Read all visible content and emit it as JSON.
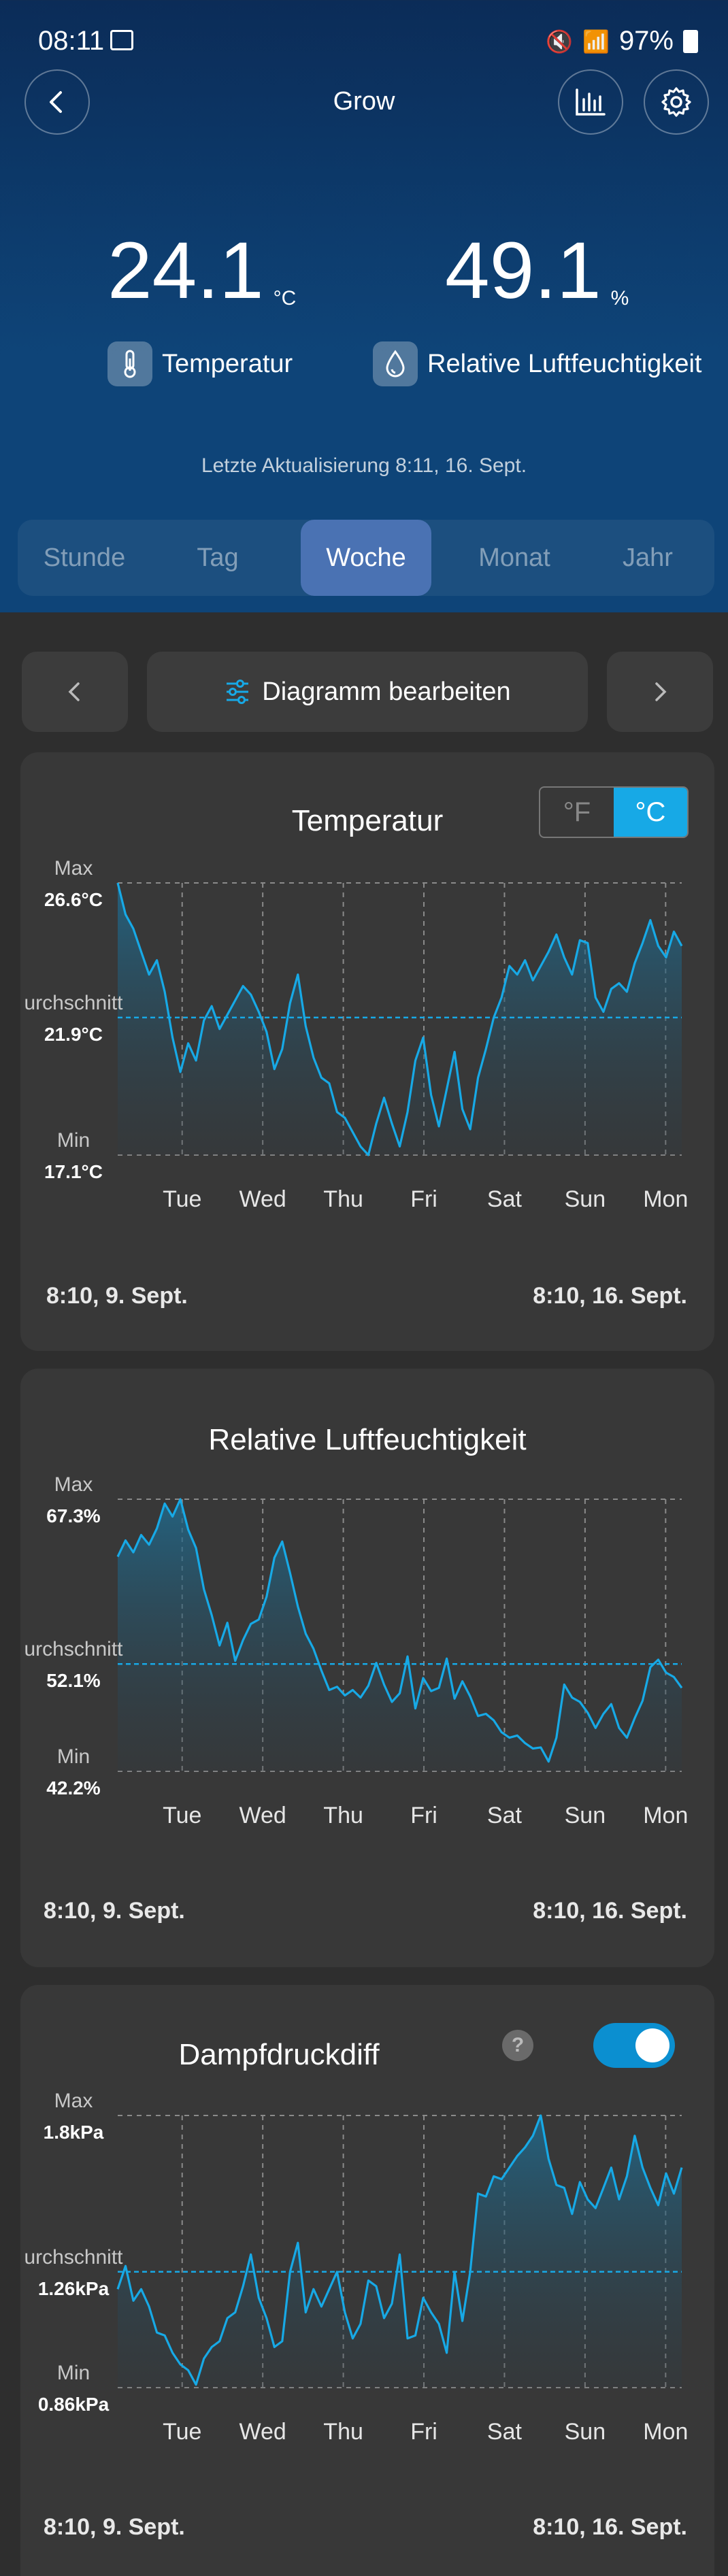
{
  "status_bar": {
    "time": "08:11",
    "battery": "97%"
  },
  "header": {
    "title": "Grow"
  },
  "readings": {
    "temperature": {
      "value": "24.1",
      "unit": "°C",
      "label": "Temperatur"
    },
    "humidity": {
      "value": "49.1",
      "unit": "%",
      "label": "Relative Luftfeuchtigkeit"
    }
  },
  "last_update": "Letzte Aktualisierung 8:11,  16. Sept.",
  "tabs": [
    "Stunde",
    "Tag",
    "Woche",
    "Monat",
    "Jahr"
  ],
  "active_tab": "Woche",
  "nav": {
    "edit_label": "Diagramm bearbeiten"
  },
  "colors": {
    "accent": "#17a9e6",
    "tab_active": "#4a72b3",
    "card": "#383838"
  },
  "chart_data": [
    {
      "type": "line",
      "title": "Temperatur",
      "units": [
        "°F",
        "°C"
      ],
      "selected_unit": "°C",
      "x_ticks": [
        "Tue",
        "Wed",
        "Thu",
        "Fri",
        "Sat",
        "Sun",
        "Mon"
      ],
      "levels": {
        "max_label": "Max",
        "max": "26.6°C",
        "avg_label": "urchschnitt",
        "avg": "21.9°C",
        "min_label": "Min",
        "min": "17.1°C"
      },
      "ylim": [
        17.1,
        26.6
      ],
      "avg_value": 21.9,
      "values": [
        26.6,
        25.5,
        25.0,
        24.2,
        23.4,
        23.9,
        22.8,
        21.2,
        20.0,
        21.0,
        20.4,
        21.8,
        22.3,
        21.5,
        22.0,
        22.5,
        23.0,
        22.7,
        22.1,
        21.4,
        20.1,
        20.8,
        22.4,
        23.4,
        21.6,
        20.5,
        19.8,
        19.6,
        18.6,
        18.4,
        17.9,
        17.4,
        17.1,
        18.2,
        19.1,
        18.2,
        17.4,
        18.6,
        20.4,
        21.2,
        19.2,
        18.1,
        19.4,
        20.7,
        18.7,
        18.0,
        19.8,
        20.8,
        21.9,
        22.6,
        23.7,
        23.4,
        23.9,
        23.2,
        23.7,
        24.2,
        24.8,
        24.0,
        23.4,
        24.6,
        24.5,
        22.6,
        22.1,
        22.9,
        23.1,
        22.8,
        23.8,
        24.5,
        25.3,
        24.4,
        24.0,
        24.9,
        24.4
      ],
      "range_start": "8:10,  9. Sept.",
      "range_end": "8:10,  16. Sept."
    },
    {
      "type": "line",
      "title": "Relative Luftfeuchtigkeit",
      "x_ticks": [
        "Tue",
        "Wed",
        "Thu",
        "Fri",
        "Sat",
        "Sun",
        "Mon"
      ],
      "levels": {
        "max_label": "Max",
        "max": "67.3%",
        "avg_label": "urchschnitt",
        "avg": "52.1%",
        "min_label": "Min",
        "min": "42.2%"
      },
      "ylim": [
        42.2,
        67.3
      ],
      "avg_value": 52.1,
      "values": [
        62.0,
        63.5,
        62.4,
        64.0,
        63.1,
        64.6,
        66.9,
        65.7,
        67.3,
        64.5,
        62.8,
        59.0,
        56.6,
        53.8,
        55.9,
        52.4,
        54.3,
        55.8,
        56.2,
        58.3,
        61.9,
        63.4,
        60.5,
        57.4,
        54.9,
        53.5,
        51.5,
        49.7,
        50.0,
        49.2,
        49.7,
        49.0,
        50.1,
        52.2,
        50.2,
        48.6,
        49.4,
        52.8,
        48.0,
        50.8,
        49.6,
        49.9,
        52.6,
        48.9,
        50.5,
        49.1,
        47.3,
        47.5,
        46.9,
        45.8,
        45.3,
        45.5,
        44.8,
        44.3,
        44.4,
        43.1,
        45.3,
        50.2,
        49.0,
        48.6,
        47.6,
        46.2,
        47.5,
        48.4,
        46.2,
        45.3,
        47.1,
        48.7,
        51.8,
        52.5,
        51.3,
        50.9,
        49.9
      ],
      "range_start": "8:10,  9. Sept.",
      "range_end": "8:10,  16. Sept."
    },
    {
      "type": "line",
      "title": "Dampfdruckdiff",
      "help": "?",
      "toggle_on": true,
      "x_ticks": [
        "Tue",
        "Wed",
        "Thu",
        "Fri",
        "Sat",
        "Sun",
        "Mon"
      ],
      "levels": {
        "max_label": "Max",
        "max": "1.8kPa",
        "avg_label": "urchschnitt",
        "avg": "1.26kPa",
        "min_label": "Min",
        "min": "0.86kPa"
      },
      "ylim": [
        0.86,
        1.8
      ],
      "avg_value": 1.26,
      "values": [
        1.2,
        1.28,
        1.16,
        1.2,
        1.14,
        1.05,
        1.04,
        0.98,
        0.94,
        0.92,
        0.87,
        0.96,
        1.0,
        1.02,
        1.1,
        1.12,
        1.21,
        1.32,
        1.17,
        1.1,
        1.0,
        1.02,
        1.26,
        1.36,
        1.12,
        1.2,
        1.14,
        1.2,
        1.26,
        1.12,
        1.03,
        1.08,
        1.23,
        1.21,
        1.1,
        1.15,
        1.32,
        1.03,
        1.04,
        1.17,
        1.12,
        1.08,
        0.98,
        1.26,
        1.09,
        1.26,
        1.53,
        1.52,
        1.59,
        1.58,
        1.62,
        1.66,
        1.69,
        1.73,
        1.8,
        1.65,
        1.56,
        1.55,
        1.46,
        1.57,
        1.51,
        1.48,
        1.55,
        1.62,
        1.51,
        1.59,
        1.73,
        1.62,
        1.55,
        1.49,
        1.6,
        1.53,
        1.62
      ],
      "range_start": "8:10,  9. Sept.",
      "range_end": "8:10,  16. Sept."
    }
  ]
}
